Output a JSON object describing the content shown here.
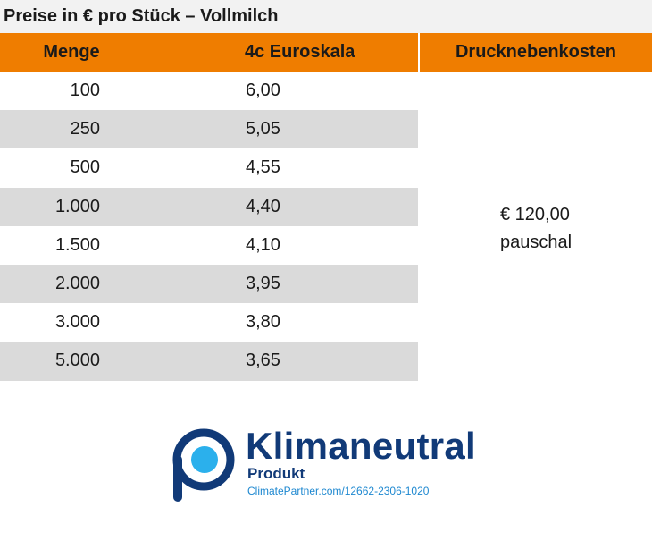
{
  "caption": "Preise in € pro Stück – Vollmilch",
  "header": {
    "col1": "Menge",
    "col2": "4c Euroskala",
    "col3": "Drucknebenkosten"
  },
  "rows": [
    {
      "qty": "100",
      "price": "6,00"
    },
    {
      "qty": "250",
      "price": "5,05"
    },
    {
      "qty": "500",
      "price": "4,55"
    },
    {
      "qty": "1.000",
      "price": "4,40"
    },
    {
      "qty": "1.500",
      "price": "4,10"
    },
    {
      "qty": "2.000",
      "price": "3,95"
    },
    {
      "qty": "3.000",
      "price": "3,80"
    },
    {
      "qty": "5.000",
      "price": "3,65"
    }
  ],
  "extra_costs": {
    "amount": "€ 120,00",
    "note": "pauschal"
  },
  "badge": {
    "title": "Klimaneutral",
    "subtitle": "Produkt",
    "url": "ClimatePartner.com/12662-2306-1020",
    "icon": "climate-partner-logo-icon"
  },
  "colors": {
    "header_bg": "#ef7d00",
    "row_shade": "#dadada",
    "caption_bg": "#f2f2f2",
    "logo_dark": "#113a78",
    "logo_light": "#2bb0ec"
  }
}
